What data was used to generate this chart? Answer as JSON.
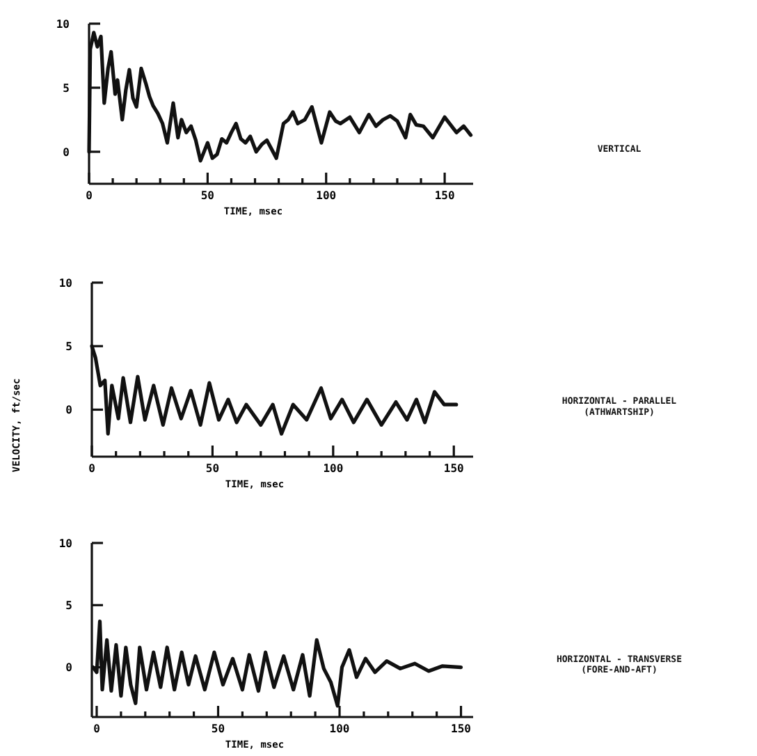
{
  "chart_data": [
    {
      "type": "line",
      "xlabel": "TIME, msec",
      "xlim": [
        0,
        162
      ],
      "ylim": [
        -2.5,
        10
      ],
      "yticks": [
        0,
        5,
        10
      ],
      "xticks": [
        0,
        {
          "value": 10,
          "label": null
        },
        {
          "value": 20,
          "label": null
        },
        {
          "value": 30,
          "label": null
        },
        {
          "value": 40,
          "label": null
        },
        50,
        {
          "value": 60,
          "label": null
        },
        {
          "value": 70,
          "label": null
        },
        {
          "value": 80,
          "label": null
        },
        {
          "value": 90,
          "label": null
        },
        100,
        {
          "value": 110,
          "label": null
        },
        {
          "value": 120,
          "label": null
        },
        {
          "value": 130,
          "label": null
        },
        {
          "value": 140,
          "label": null
        },
        150
      ],
      "grid": false,
      "marker": "none",
      "line_style": "solid",
      "series": [
        {
          "name": "VERTICAL",
          "color": "#111111",
          "x": [
            0,
            0.5,
            2,
            3.5,
            5,
            6.4,
            8,
            9.3,
            11,
            12,
            14,
            15.5,
            17,
            18.5,
            20,
            22,
            24,
            25.5,
            27,
            29,
            31,
            33,
            35.5,
            37.5,
            39,
            41,
            43,
            45,
            47,
            50,
            52,
            54,
            56,
            58,
            60,
            62,
            64,
            66,
            68,
            70.5,
            73,
            75,
            77,
            79,
            82,
            84,
            86,
            88,
            91,
            94,
            98,
            101.5,
            104,
            106,
            110,
            114,
            118,
            121,
            124,
            127,
            130,
            133.5,
            135.5,
            138,
            141,
            145,
            150,
            155,
            158,
            161
          ],
          "values": [
            0,
            8,
            9.3,
            8.2,
            9,
            3.8,
            6.5,
            7.8,
            4.5,
            5.6,
            2.5,
            4.8,
            6.4,
            4.2,
            3.5,
            6.5,
            5.3,
            4.3,
            3.6,
            3,
            2.2,
            0.7,
            3.8,
            1.1,
            2.5,
            1.5,
            2,
            0.9,
            -0.7,
            0.7,
            -0.5,
            -0.2,
            1,
            0.7,
            1.5,
            2.2,
            1,
            0.7,
            1.2,
            0,
            0.6,
            0.9,
            0.2,
            -0.5,
            2.2,
            2.5,
            3.1,
            2.2,
            2.5,
            3.5,
            0.7,
            3.1,
            2.4,
            2.2,
            2.7,
            1.5,
            2.9,
            2,
            2.5,
            2.8,
            2.4,
            1.1,
            2.9,
            2.1,
            2,
            1.1,
            2.7,
            1.5,
            2,
            1.3
          ]
        }
      ]
    },
    {
      "type": "line",
      "xlabel": "TIME, msec",
      "ylabel": "VELOCITY, ft/sec",
      "xlim": [
        0,
        158
      ],
      "ylim": [
        -3.7,
        10
      ],
      "yticks": [
        0,
        5,
        10
      ],
      "xticks": [
        0,
        {
          "value": 10,
          "label": null
        },
        {
          "value": 20,
          "label": null
        },
        {
          "value": 30,
          "label": null
        },
        {
          "value": 40,
          "label": null
        },
        50,
        {
          "value": 60,
          "label": null
        },
        {
          "value": 70,
          "label": null
        },
        {
          "value": 80,
          "label": null
        },
        {
          "value": 90,
          "label": null
        },
        100,
        {
          "value": 110,
          "label": null
        },
        {
          "value": 120,
          "label": null
        },
        {
          "value": 130,
          "label": null
        },
        {
          "value": 140,
          "label": null
        },
        150
      ],
      "grid": false,
      "marker": "none",
      "line_style": "solid",
      "series": [
        {
          "name": "HORIZONTAL - PARALLEL (ATHWARTSHIP)",
          "color": "#111111",
          "x": [
            0,
            1.5,
            3.5,
            5.4,
            6.7,
            8.3,
            11,
            13,
            16,
            19,
            22,
            25.6,
            29.5,
            33,
            37,
            41,
            45,
            48.7,
            52.6,
            56.5,
            60,
            64,
            70,
            75,
            78.6,
            83.4,
            89,
            95,
            99,
            103.7,
            108.5,
            114,
            120,
            126,
            130.6,
            134.5,
            138,
            142,
            146,
            151
          ],
          "values": [
            5,
            4.1,
            1.9,
            2.3,
            -1.9,
            1.9,
            -0.7,
            2.5,
            -1,
            2.6,
            -0.8,
            1.9,
            -1.2,
            1.7,
            -0.7,
            1.5,
            -1.2,
            2.1,
            -0.8,
            0.8,
            -1,
            0.4,
            -1.2,
            0.4,
            -1.9,
            0.4,
            -0.8,
            1.7,
            -0.7,
            0.8,
            -1,
            0.8,
            -1.2,
            0.6,
            -0.8,
            0.8,
            -1,
            1.4,
            0.4,
            0.4
          ]
        }
      ]
    },
    {
      "type": "line",
      "xlabel": "TIME, msec",
      "xlim": [
        -2,
        155
      ],
      "ylim": [
        -4,
        10
      ],
      "yticks": [
        0,
        5,
        10
      ],
      "xticks": [
        0,
        {
          "value": 10,
          "label": null
        },
        {
          "value": 20,
          "label": null
        },
        {
          "value": 30,
          "label": null
        },
        {
          "value": 40,
          "label": null
        },
        50,
        {
          "value": 60,
          "label": null
        },
        {
          "value": 70,
          "label": null
        },
        {
          "value": 80,
          "label": null
        },
        {
          "value": 90,
          "label": null
        },
        100,
        {
          "value": 110,
          "label": null
        },
        {
          "value": 120,
          "label": null
        },
        {
          "value": 130,
          "label": null
        },
        {
          "value": 140,
          "label": null
        },
        150
      ],
      "grid": false,
      "marker": "none",
      "line_style": "solid",
      "series": [
        {
          "name": "HORIZONTAL - TRANSVERSE (FORE-AND-AFT)",
          "color": "#111111",
          "x": [
            -1.5,
            0,
            1.3,
            2.3,
            4.2,
            6,
            8,
            10,
            12,
            14,
            16,
            17.7,
            20.5,
            23.4,
            26.3,
            29,
            32,
            35,
            37.8,
            40.7,
            44.5,
            48.4,
            52,
            56,
            60,
            62.8,
            66.6,
            69.5,
            73,
            77,
            81,
            84.8,
            87.7,
            90.6,
            93.5,
            96.4,
            99.2,
            101,
            104,
            107,
            110.7,
            114.6,
            119.4,
            125,
            131,
            136.7,
            142.4,
            150
          ],
          "values": [
            0,
            -0.4,
            3.7,
            -1.8,
            2.2,
            -1.9,
            1.8,
            -2.3,
            1.6,
            -1.4,
            -2.9,
            1.6,
            -1.8,
            1.2,
            -1.6,
            1.6,
            -1.8,
            1.2,
            -1.4,
            0.9,
            -1.8,
            1.2,
            -1.4,
            0.7,
            -1.8,
            1,
            -1.9,
            1.2,
            -1.6,
            0.9,
            -1.8,
            1,
            -2.3,
            2.2,
            -0.1,
            -1.2,
            -3.1,
            0,
            1.4,
            -0.8,
            0.7,
            -0.4,
            0.5,
            -0.1,
            0.3,
            -0.3,
            0.1,
            0
          ]
        }
      ]
    }
  ]
}
